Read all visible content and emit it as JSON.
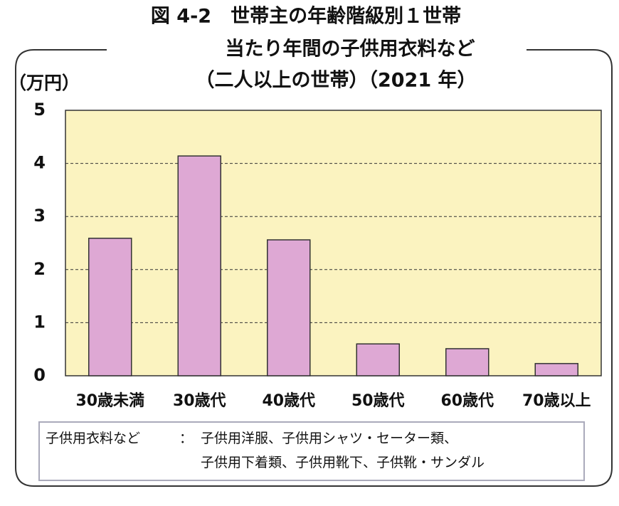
{
  "chart_data": {
    "type": "bar",
    "title": [
      "図 4-2　世帯主の年齢階級別１世帯",
      "当たり年間の子供用衣料など",
      "（二人以上の世帯）（2021 年）"
    ],
    "y_label": "（万円）",
    "categories": [
      "30歳未満",
      "30歳代",
      "40歳代",
      "50歳代",
      "60歳代",
      "70歳以上"
    ],
    "values": [
      2.59,
      4.14,
      2.56,
      0.6,
      0.51,
      0.23
    ],
    "color": "#dea8d4",
    "ylim": [
      0,
      5
    ],
    "yticks": [
      0,
      1,
      2,
      3,
      4,
      5
    ],
    "grid": true,
    "note": {
      "label": "子供用衣料など",
      "separator": "：",
      "lines": [
        "子供用洋服、子供用シャツ・セーター類、",
        "子供用下着類、子供用靴下、子供靴・サンダル"
      ]
    }
  }
}
